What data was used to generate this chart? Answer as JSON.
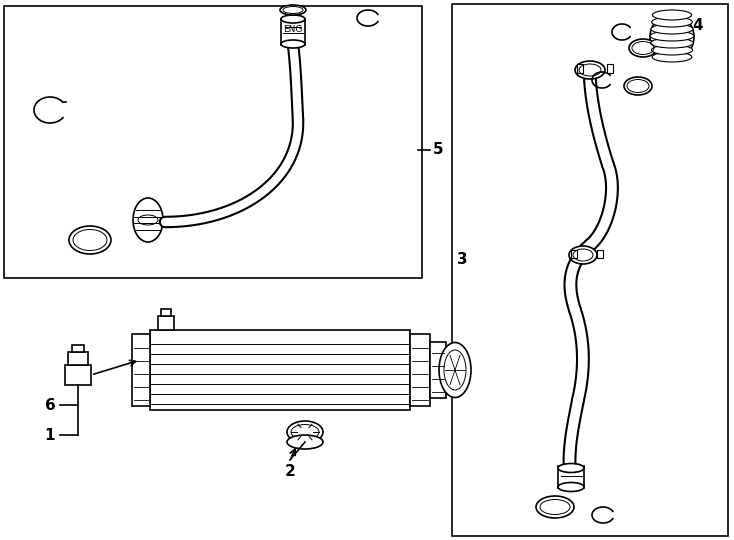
{
  "bg_color": "#ffffff",
  "line_color": "#000000",
  "fig_width": 7.34,
  "fig_height": 5.4
}
